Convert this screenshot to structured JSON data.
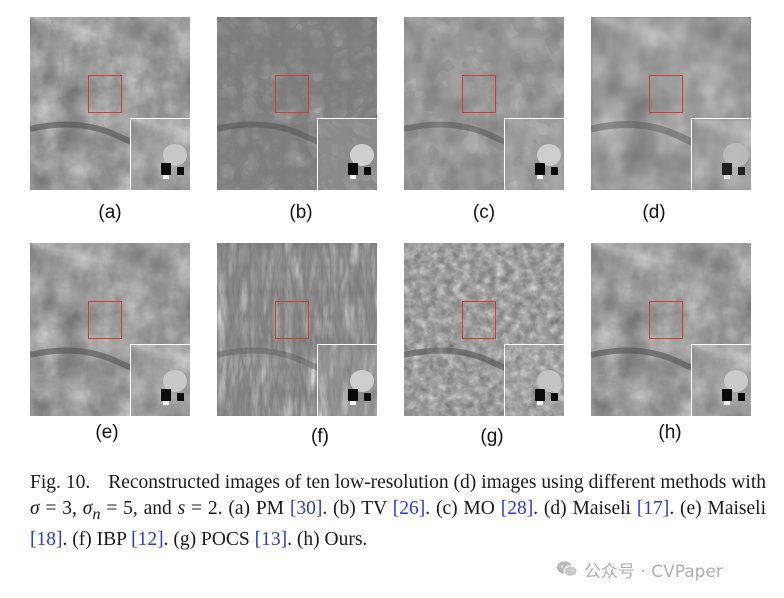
{
  "panels": [
    {
      "label": "(a)",
      "texture": "smooth"
    },
    {
      "label": "(b)",
      "texture": "patchy"
    },
    {
      "label": "(c)",
      "texture": "blocky"
    },
    {
      "label": "(d)",
      "texture": "blurred"
    },
    {
      "label": "(e)",
      "texture": "smooth"
    },
    {
      "label": "(f)",
      "texture": "ringing"
    },
    {
      "label": "(g)",
      "texture": "noisy"
    },
    {
      "label": "(h)",
      "texture": "smooth"
    }
  ],
  "caption": {
    "fig_label": "Fig. 10.",
    "p1": "Reconstructed images of ten low-resolution (d) images using different methods with ",
    "sigma": "σ",
    "eq1": " = 3, ",
    "sigma_n": "σ",
    "n_sub": "n",
    "eq2": " = 5, and ",
    "s_var": "s",
    "eq3": " = 2. (a) PM ",
    "ref_a": "[30]",
    "t_b": ". (b) TV ",
    "ref_b": "[26]",
    "t_c": ". (c) MO ",
    "ref_c": "[28]",
    "t_d": ". (d) Maiseli ",
    "ref_d": "[17]",
    "t_e": ". (e) Maiseli ",
    "ref_e": "[18]",
    "t_f": ". (f) IBP ",
    "ref_f": "[12]",
    "t_g": ". (g) POCS ",
    "ref_g": "[13]",
    "t_h": ". (h) Ours."
  },
  "watermark": {
    "text": "公众号 · CVPaper",
    "icon": "wechat-icon"
  },
  "colors": {
    "roi_box": "#d23a3a",
    "reference_link": "#2a3bd6"
  }
}
